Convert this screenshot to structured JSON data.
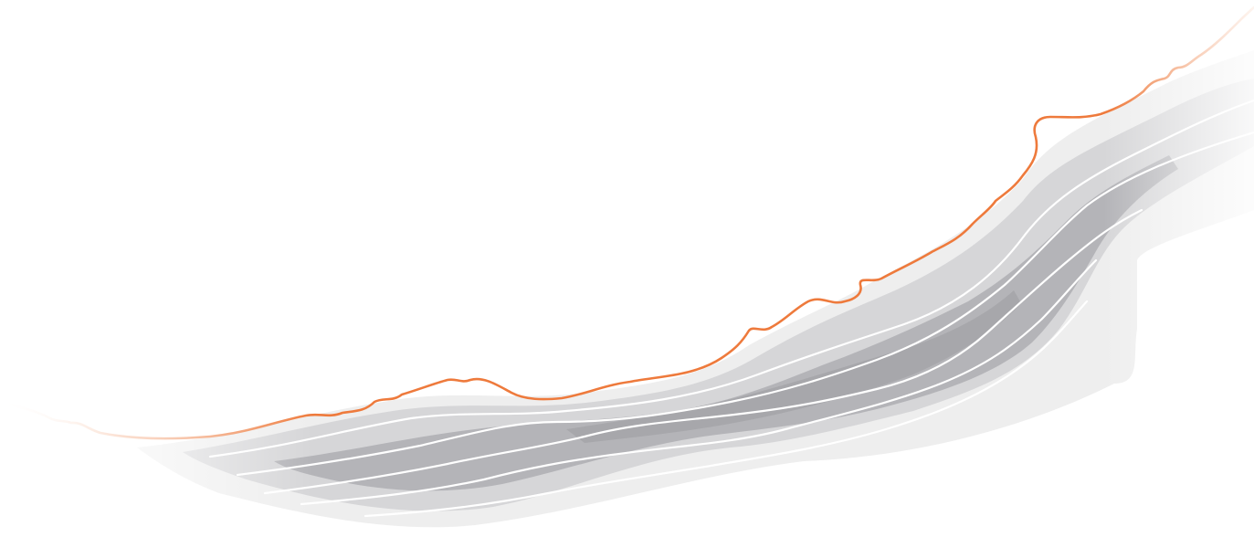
{
  "artwork": {
    "kind": "abstract-ridge-illustration",
    "colors": {
      "background": "#ffffff",
      "ridge_line": "#ee7a3c",
      "shade_light": "#eeeeee",
      "shade_mid": "#cfcfd1",
      "shade_dark": "#a9a9ad",
      "contour_line": "#ffffff"
    }
  }
}
